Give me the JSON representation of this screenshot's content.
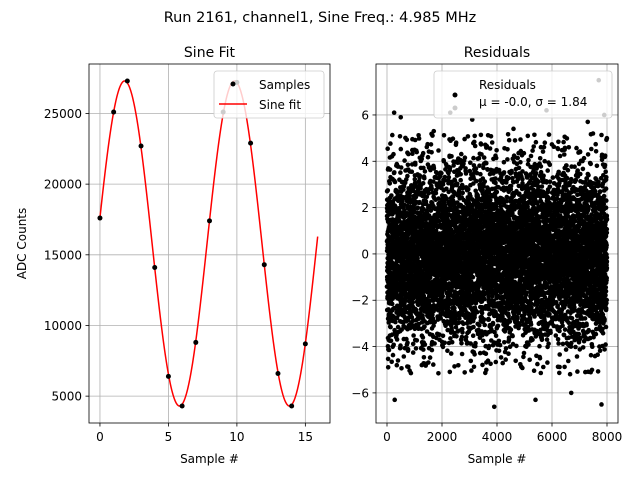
{
  "suptitle": "Run 2161, channel1, Sine Freq.: 4.985 MHz",
  "chart_data": [
    {
      "type": "scatter+line",
      "title": "Sine Fit",
      "xlabel": "Sample #",
      "ylabel": "ADC Counts",
      "xlim": [
        -0.8,
        16.8
      ],
      "ylim": [
        3100,
        28500
      ],
      "xticks": [
        0,
        5,
        10,
        15
      ],
      "yticks": [
        5000,
        10000,
        15000,
        20000,
        25000
      ],
      "grid": true,
      "legend_position": "top-right",
      "legend": [
        "Samples",
        "Sine fit"
      ],
      "samples": {
        "name": "Samples",
        "x": [
          0,
          1,
          2,
          3,
          4,
          5,
          6,
          7,
          8,
          9,
          10,
          11,
          12,
          13,
          14,
          15
        ],
        "y": [
          17600,
          25100,
          27300,
          22700,
          14100,
          6400,
          4300,
          8800,
          17400,
          25100,
          27200,
          22900,
          14300,
          6600,
          4300,
          8700
        ],
        "color": "#000000"
      },
      "fit": {
        "name": "Sine fit",
        "model": "offset + amplitude*sin(2*pi*x/period + phase)",
        "offset": 15800,
        "amplitude": 11500,
        "period": 8.025,
        "phase": 0.16,
        "x_range": [
          0,
          15.9
        ],
        "color": "#ff0000"
      }
    },
    {
      "type": "scatter",
      "title": "Residuals",
      "xlabel": "Sample #",
      "ylabel": "",
      "xlim": [
        -400,
        8400
      ],
      "ylim": [
        -7.3,
        8.2
      ],
      "xticks": [
        0,
        2000,
        4000,
        6000,
        8000
      ],
      "yticks": [
        -6,
        -4,
        -2,
        0,
        2,
        4,
        6
      ],
      "grid": true,
      "legend_position": "top-right",
      "legend": [
        "Residuals"
      ],
      "legend_subtext": "μ = -0.0, σ = 1.84",
      "series": {
        "name": "Residuals",
        "n_points": 8000,
        "mean": 0.0,
        "sigma": 1.84,
        "x_range": [
          0,
          8000
        ],
        "extremes": [
          [
            280,
            -6.3
          ],
          [
            3900,
            -6.6
          ],
          [
            7800,
            -6.5
          ],
          [
            5400,
            -6.3
          ],
          [
            6700,
            -6.0
          ],
          [
            7700,
            7.5
          ],
          [
            2300,
            6.1
          ],
          [
            5800,
            6.2
          ],
          [
            7900,
            6.0
          ],
          [
            260,
            6.1
          ],
          [
            500,
            5.9
          ],
          [
            3100,
            5.8
          ],
          [
            7300,
            5.7
          ],
          [
            1700,
            5.3
          ],
          [
            4600,
            5.4
          ]
        ],
        "color": "#000000"
      }
    }
  ]
}
